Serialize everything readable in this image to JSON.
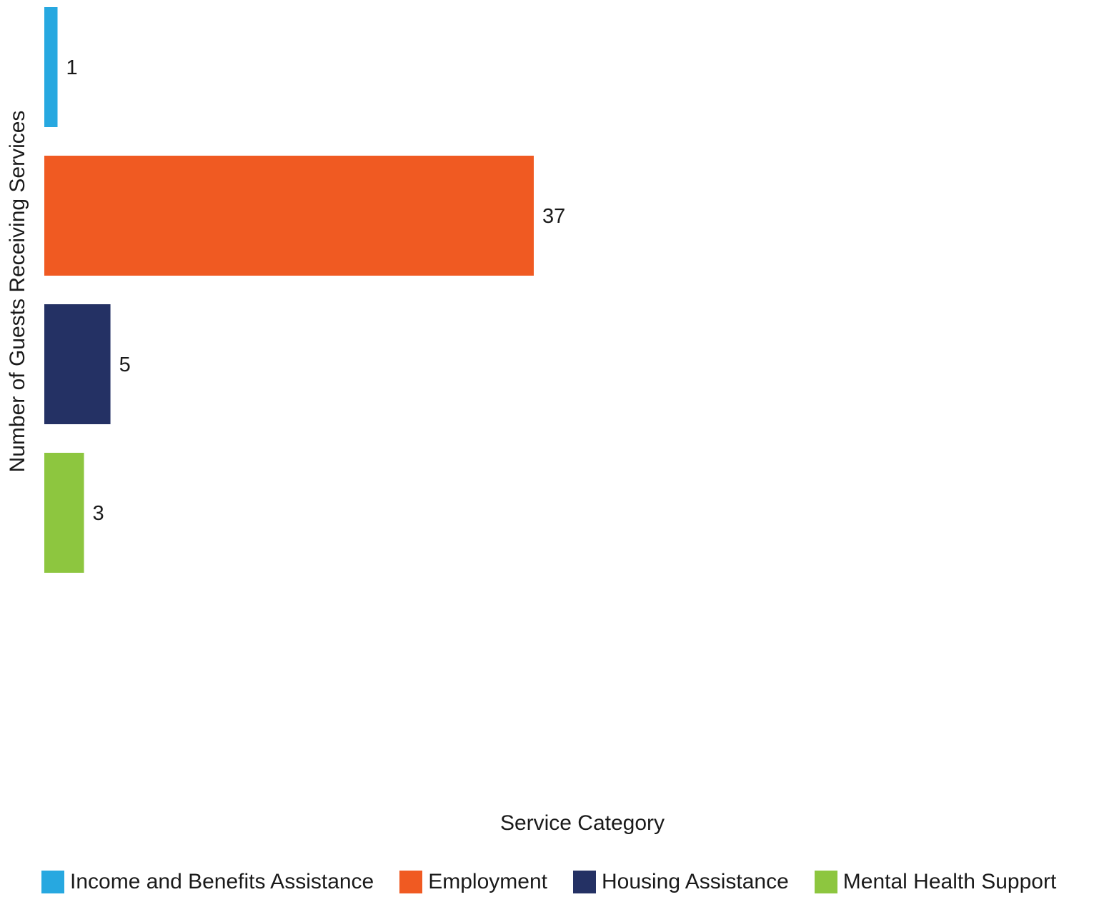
{
  "chart_data": {
    "type": "bar",
    "orientation": "horizontal",
    "categories": [
      "Income and Benefits Assistance",
      "Employment",
      "Housing Assistance",
      "Mental Health Support"
    ],
    "values": [
      1,
      37,
      5,
      3
    ],
    "colors": [
      "#27a8e0",
      "#f05a22",
      "#243164",
      "#8dc63f"
    ],
    "xlabel": "Service Category",
    "ylabel": "Number of Guests Receiving Services",
    "xlim": [
      0,
      78
    ],
    "grid": false,
    "legend_placement": "bottom"
  }
}
